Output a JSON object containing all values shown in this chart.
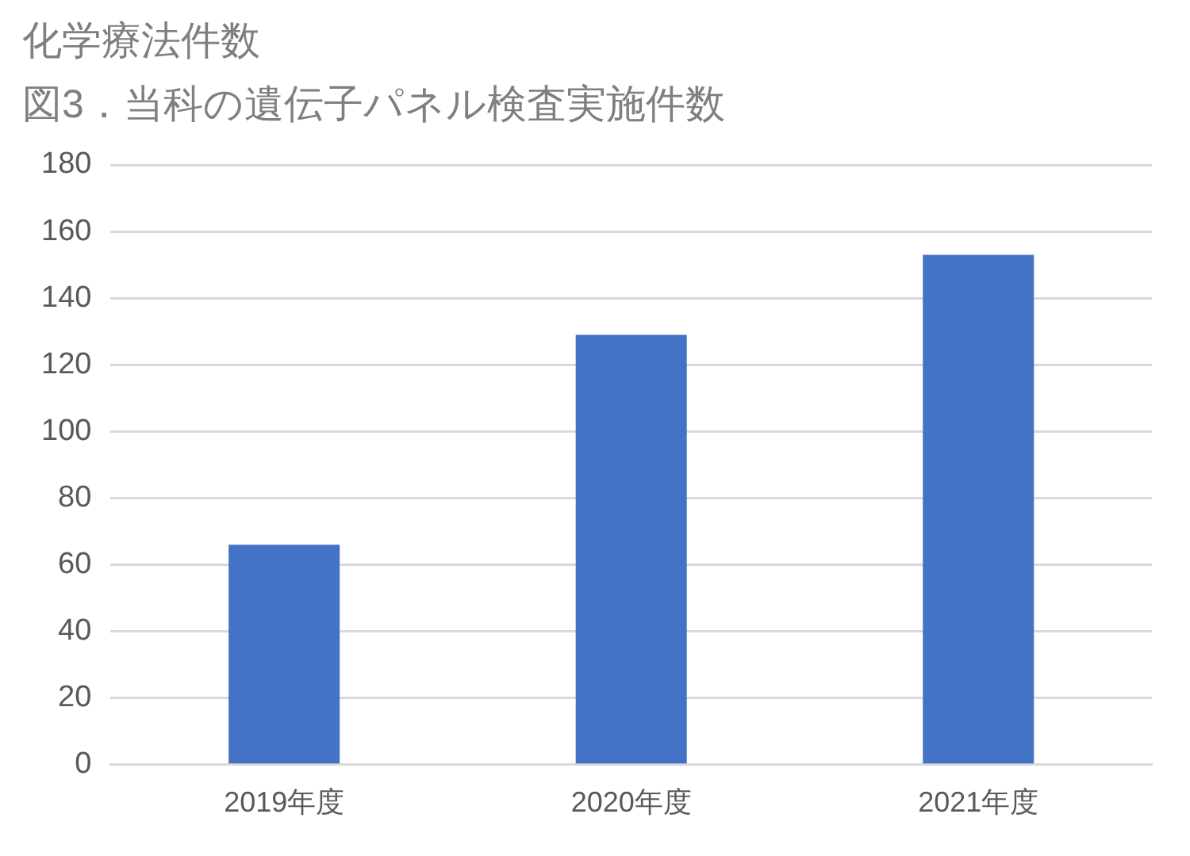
{
  "chart_data": {
    "type": "bar",
    "title": "化学療法件数",
    "subtitle": "図3．当科の遺伝子パネル検査実施件数",
    "categories": [
      "2019年度",
      "2020年度",
      "2021年度"
    ],
    "values": [
      66,
      129,
      153
    ],
    "color": "#4472c4",
    "ylim": [
      0,
      180
    ],
    "yticks": [
      0,
      20,
      40,
      60,
      80,
      100,
      120,
      140,
      160,
      180
    ],
    "grid": "y",
    "legend": false
  }
}
